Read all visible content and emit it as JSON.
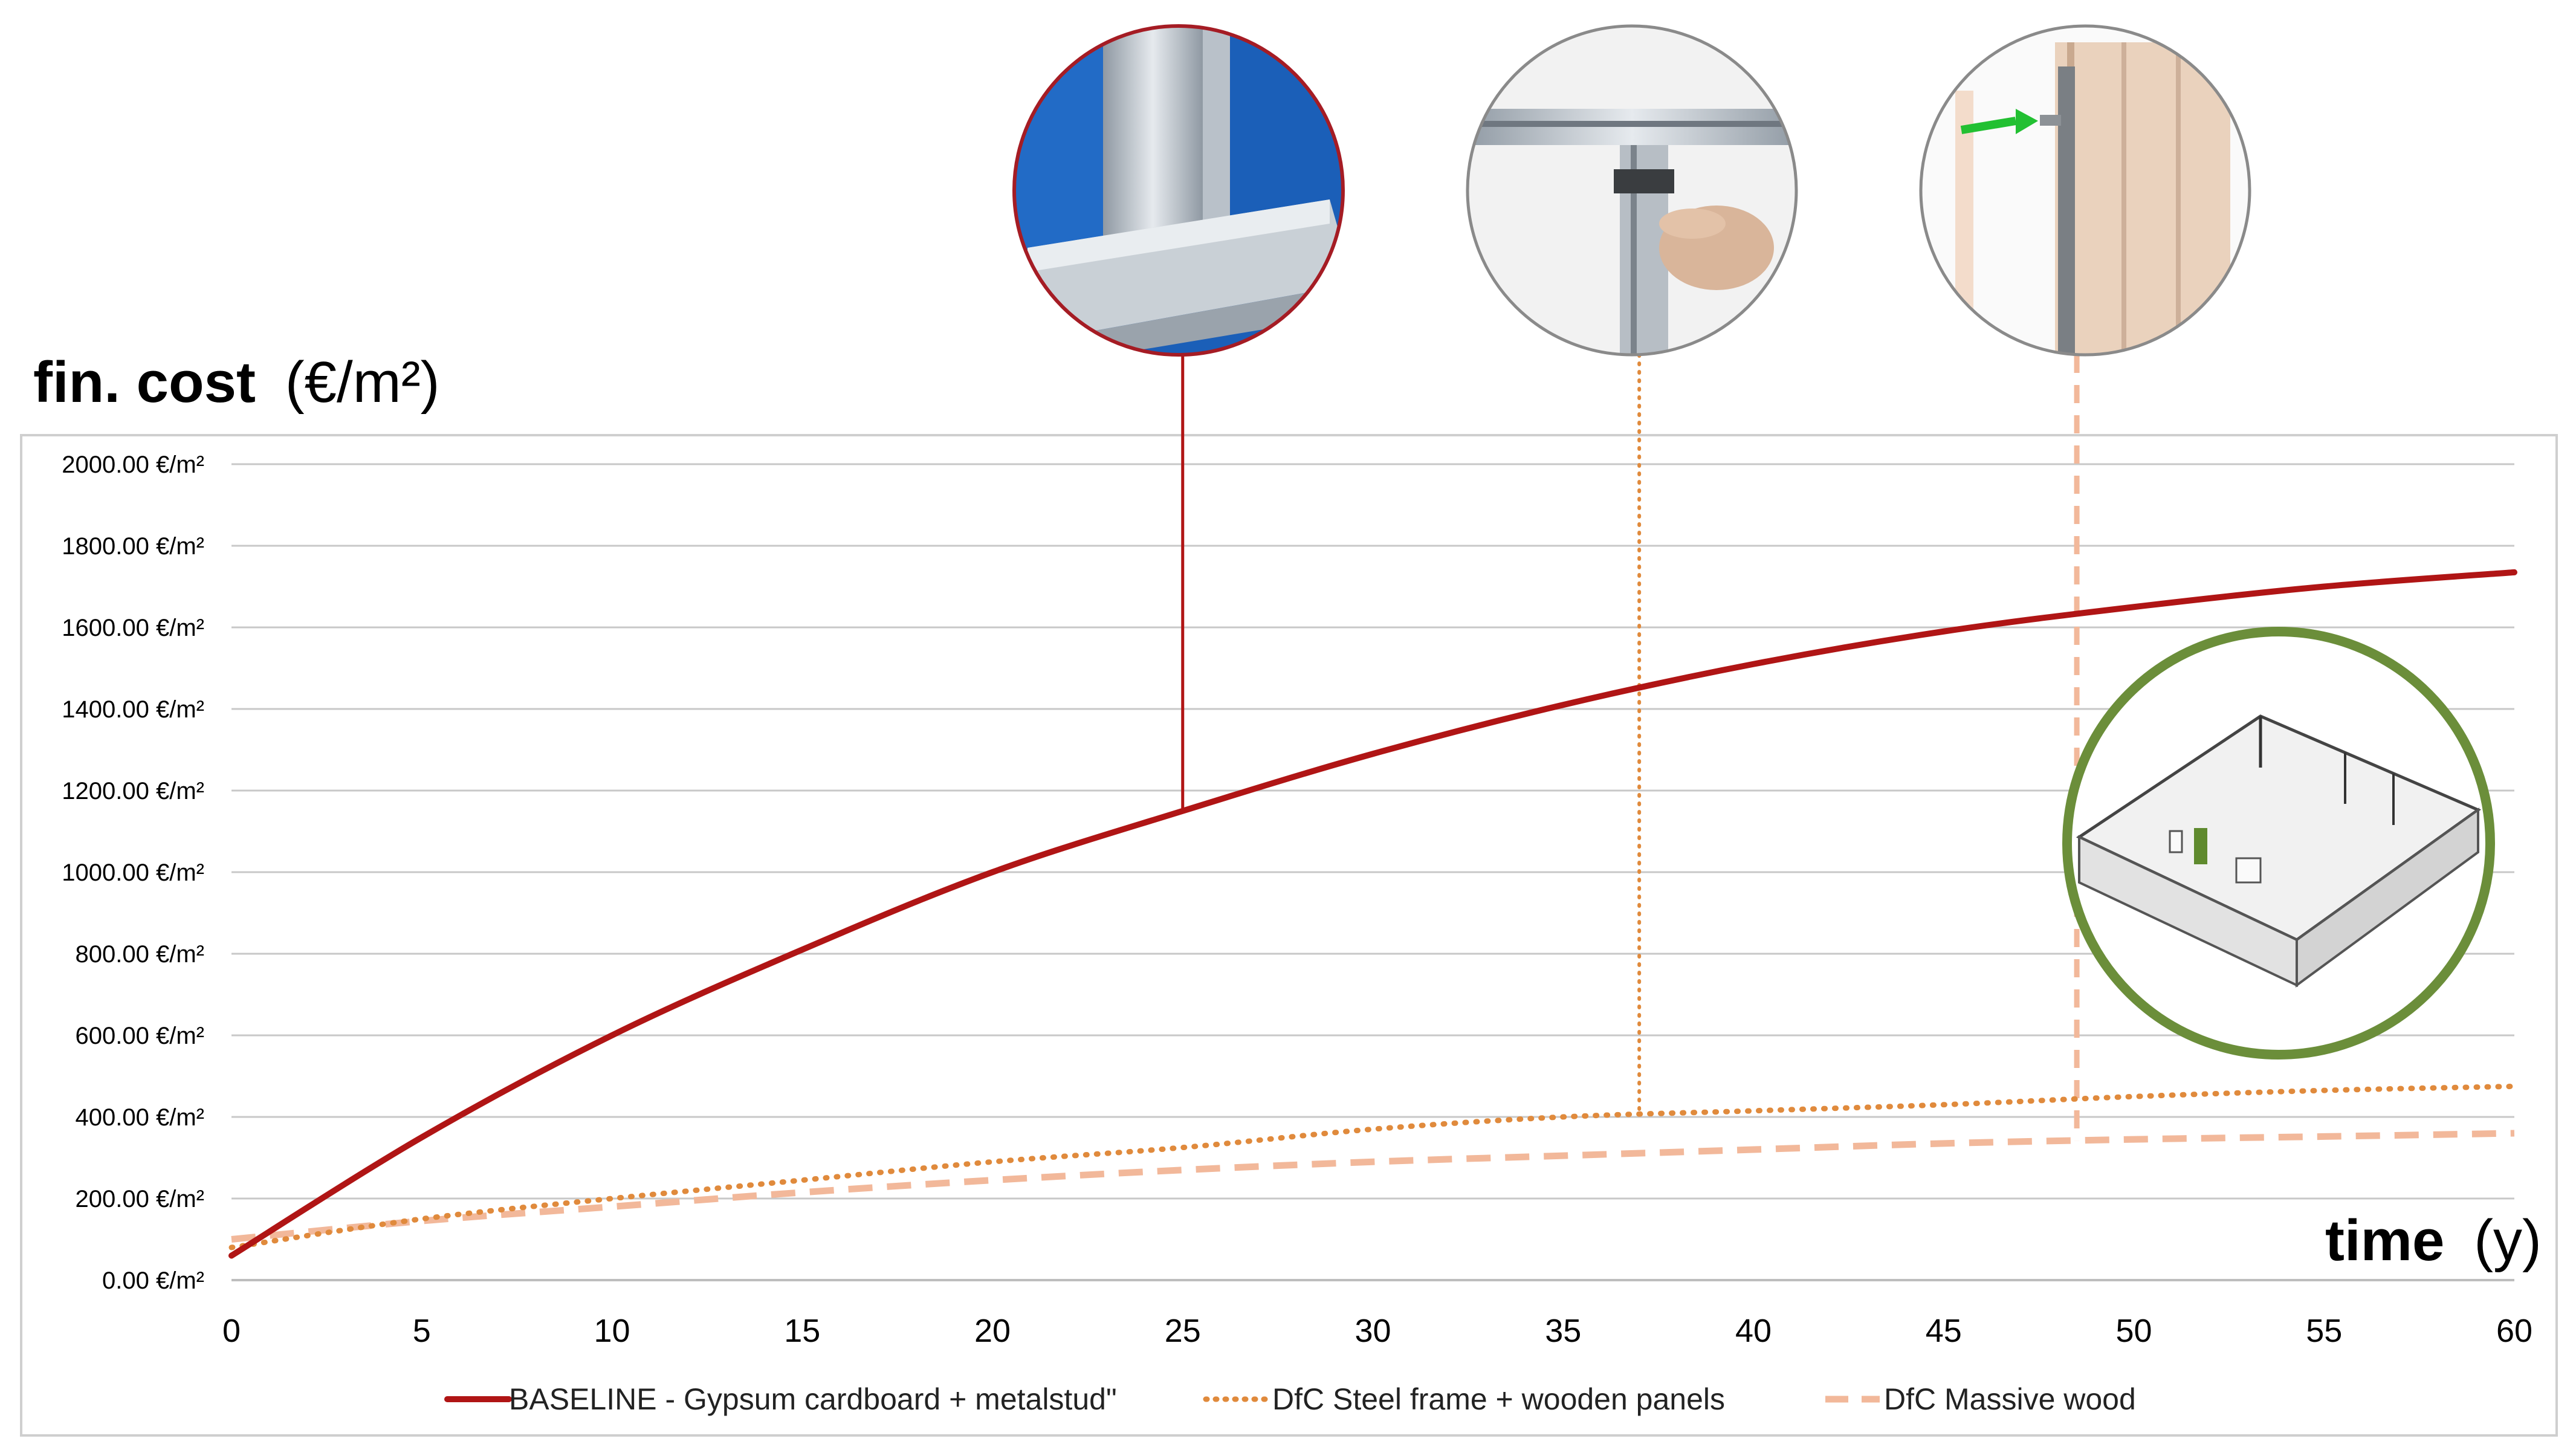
{
  "chart_data": {
    "type": "line",
    "ylabel_main": "fin. cost",
    "ylabel_unit": "(€/m²)",
    "xlabel_main": "time",
    "xlabel_unit": "(y)",
    "xlim": [
      0,
      60
    ],
    "ylim": [
      0,
      2000
    ],
    "grid": true,
    "legend_position": "bottom",
    "x_ticks": [
      "0",
      "5",
      "10",
      "15",
      "20",
      "25",
      "30",
      "35",
      "40",
      "45",
      "50",
      "55",
      "60"
    ],
    "y_ticks": [
      "0.00 €/m²",
      "200.00 €/m²",
      "400.00 €/m²",
      "600.00 €/m²",
      "800.00 €/m²",
      "1000.00 €/m²",
      "1200.00 €/m²",
      "1400.00 €/m²",
      "1600.00 €/m²",
      "1800.00 €/m²",
      "2000.00 €/m²"
    ],
    "x": [
      0,
      5,
      10,
      15,
      20,
      25,
      30,
      35,
      40,
      45,
      50,
      55,
      60
    ],
    "series": [
      {
        "name": "BASELINE - Gypsum cardboard + metalstud\"",
        "color": "#b01515",
        "style": "solid",
        "values": [
          60,
          350,
          600,
          810,
          1000,
          1150,
          1290,
          1410,
          1510,
          1590,
          1650,
          1700,
          1735
        ]
      },
      {
        "name": "DfC Steel frame + wooden panels",
        "color": "#e08a3c",
        "style": "dotted",
        "values": [
          80,
          150,
          200,
          245,
          290,
          325,
          370,
          400,
          415,
          430,
          450,
          465,
          475
        ]
      },
      {
        "name": "DfC Massive wood",
        "color": "#f2b89a",
        "style": "dashed",
        "values": [
          100,
          145,
          180,
          215,
          245,
          270,
          290,
          305,
          320,
          335,
          345,
          352,
          360
        ]
      }
    ],
    "callouts": [
      {
        "x": 25,
        "color": "#b01515",
        "style": "solid",
        "icon": "metal-stud-frame-photo"
      },
      {
        "x": 37,
        "color": "#e08a3c",
        "style": "dotted",
        "icon": "steel-frame-clip-photo"
      },
      {
        "x": 48.5,
        "color": "#f2b89a",
        "style": "dashed",
        "icon": "wooden-panel-wall-photo"
      }
    ],
    "inset_icon": "office-floor-plan-3d-drawing"
  }
}
